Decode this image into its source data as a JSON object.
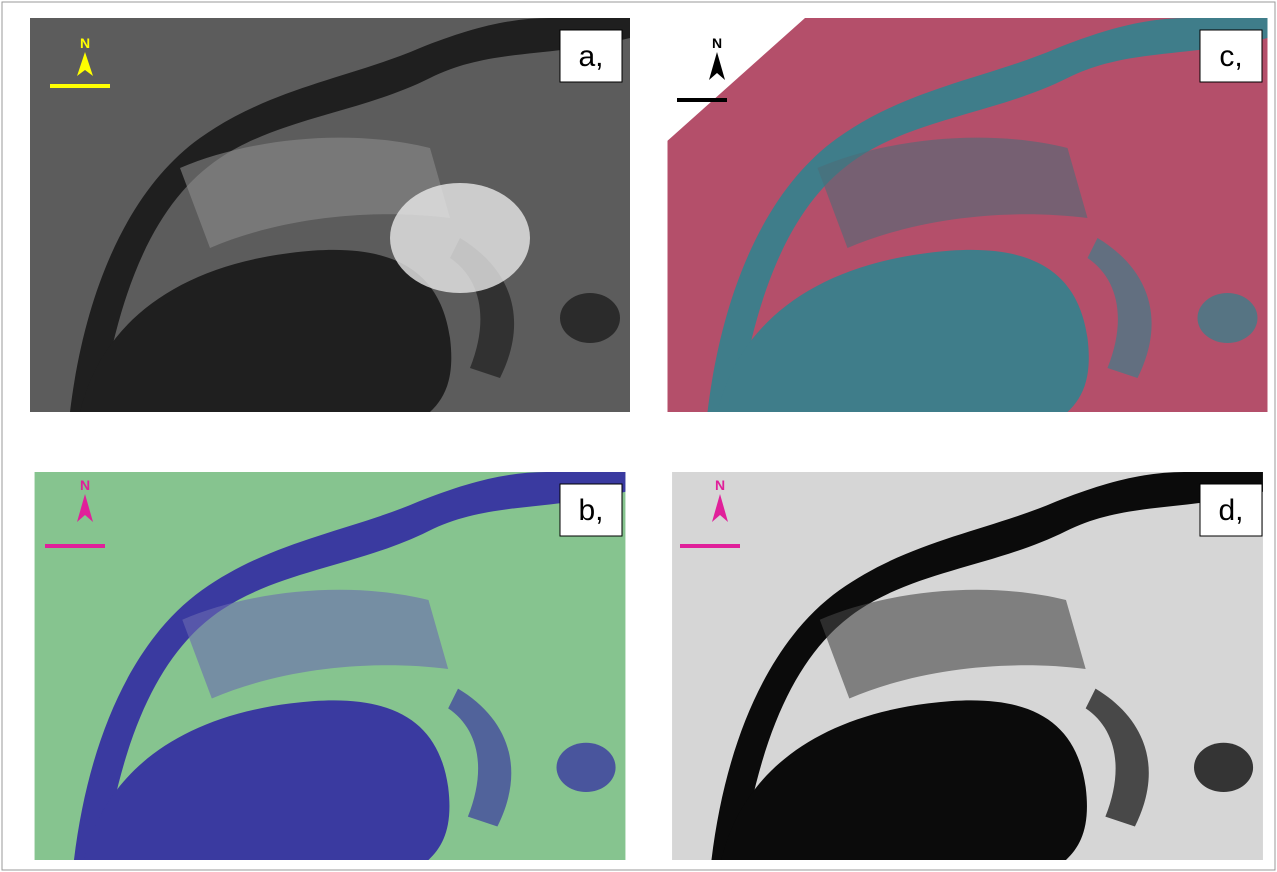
{
  "panels": [
    {
      "label": "a,",
      "north": "N"
    },
    {
      "label": "c,",
      "north": "N"
    },
    {
      "label": "b,",
      "north": "N"
    },
    {
      "label": "d,",
      "north": "N"
    }
  ]
}
